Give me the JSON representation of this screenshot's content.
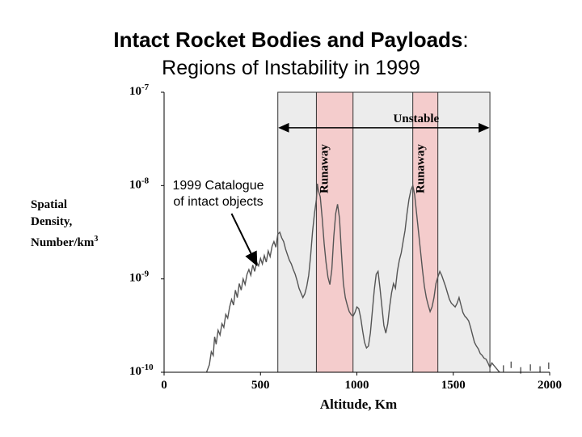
{
  "chart_data": {
    "type": "line",
    "title": "Intact Rocket Bodies and Payloads",
    "title_colon": ":",
    "subtitle": "Regions of Instability in 1999",
    "xlabel": "Altitude, Km",
    "ylabel_lines": [
      "Spatial",
      "Density,",
      "Number/km3"
    ],
    "xlim": [
      0,
      2000
    ],
    "ylim_log10": [
      -10,
      -7
    ],
    "y_scale": "log",
    "x_ticks": [
      0,
      500,
      1000,
      1500,
      2000
    ],
    "y_ticks": [
      {
        "exp": -7,
        "base": "10",
        "sup": "-7"
      },
      {
        "exp": -8,
        "base": "10",
        "sup": "-8"
      },
      {
        "exp": -9,
        "base": "10",
        "sup": "-9"
      },
      {
        "exp": -10,
        "base": "10",
        "sup": "-10"
      }
    ],
    "regions": [
      {
        "name": "unstable-band",
        "x": [
          590,
          1690
        ],
        "color": "#ececec"
      },
      {
        "name": "runaway-band-1",
        "x": [
          790,
          980
        ],
        "color": "#f4cccc",
        "label": "Runaway"
      },
      {
        "name": "runaway-band-2",
        "x": [
          1290,
          1420
        ],
        "color": "#f4cccc",
        "label": "Runaway"
      }
    ],
    "unstable_range": {
      "label": "Unstable",
      "x": [
        590,
        1690
      ],
      "log10y": -7.38
    },
    "annotation": {
      "lines": [
        "1999 Catalogue",
        "of intact objects"
      ],
      "arrow_tail": [
        350,
        -8.3
      ],
      "arrow_head": [
        480,
        -8.85
      ]
    },
    "series": [
      {
        "points": [
          [
            220,
            -10.0
          ],
          [
            235,
            -9.92
          ],
          [
            245,
            -9.78
          ],
          [
            255,
            -9.82
          ],
          [
            262,
            -9.62
          ],
          [
            270,
            -9.7
          ],
          [
            280,
            -9.55
          ],
          [
            290,
            -9.6
          ],
          [
            300,
            -9.48
          ],
          [
            310,
            -9.52
          ],
          [
            320,
            -9.38
          ],
          [
            330,
            -9.42
          ],
          [
            340,
            -9.3
          ],
          [
            350,
            -9.22
          ],
          [
            360,
            -9.28
          ],
          [
            370,
            -9.12
          ],
          [
            380,
            -9.2
          ],
          [
            390,
            -9.05
          ],
          [
            400,
            -9.12
          ],
          [
            410,
            -9.0
          ],
          [
            420,
            -9.06
          ],
          [
            430,
            -8.95
          ],
          [
            440,
            -8.9
          ],
          [
            450,
            -8.96
          ],
          [
            460,
            -8.85
          ],
          [
            470,
            -8.92
          ],
          [
            480,
            -8.82
          ],
          [
            490,
            -8.86
          ],
          [
            500,
            -8.78
          ],
          [
            510,
            -8.84
          ],
          [
            520,
            -8.75
          ],
          [
            530,
            -8.82
          ],
          [
            540,
            -8.7
          ],
          [
            550,
            -8.76
          ],
          [
            560,
            -8.65
          ],
          [
            570,
            -8.6
          ],
          [
            580,
            -8.66
          ],
          [
            590,
            -8.52
          ],
          [
            600,
            -8.5
          ],
          [
            610,
            -8.56
          ],
          [
            620,
            -8.6
          ],
          [
            630,
            -8.68
          ],
          [
            640,
            -8.74
          ],
          [
            650,
            -8.8
          ],
          [
            660,
            -8.84
          ],
          [
            670,
            -8.9
          ],
          [
            680,
            -8.95
          ],
          [
            690,
            -9.02
          ],
          [
            700,
            -9.1
          ],
          [
            710,
            -9.15
          ],
          [
            720,
            -9.2
          ],
          [
            730,
            -9.16
          ],
          [
            740,
            -9.08
          ],
          [
            750,
            -8.96
          ],
          [
            760,
            -8.75
          ],
          [
            770,
            -8.5
          ],
          [
            780,
            -8.3
          ],
          [
            790,
            -8.15
          ],
          [
            795,
            -7.98
          ],
          [
            800,
            -8.05
          ],
          [
            810,
            -8.12
          ],
          [
            820,
            -8.35
          ],
          [
            830,
            -8.62
          ],
          [
            840,
            -8.82
          ],
          [
            850,
            -8.98
          ],
          [
            860,
            -9.06
          ],
          [
            870,
            -8.9
          ],
          [
            880,
            -8.55
          ],
          [
            890,
            -8.3
          ],
          [
            900,
            -8.2
          ],
          [
            910,
            -8.35
          ],
          [
            920,
            -8.72
          ],
          [
            930,
            -9.05
          ],
          [
            940,
            -9.2
          ],
          [
            950,
            -9.28
          ],
          [
            960,
            -9.35
          ],
          [
            970,
            -9.38
          ],
          [
            980,
            -9.4
          ],
          [
            990,
            -9.36
          ],
          [
            1000,
            -9.3
          ],
          [
            1010,
            -9.32
          ],
          [
            1020,
            -9.42
          ],
          [
            1030,
            -9.56
          ],
          [
            1040,
            -9.68
          ],
          [
            1050,
            -9.74
          ],
          [
            1060,
            -9.72
          ],
          [
            1070,
            -9.58
          ],
          [
            1080,
            -9.35
          ],
          [
            1090,
            -9.12
          ],
          [
            1100,
            -8.95
          ],
          [
            1110,
            -8.92
          ],
          [
            1120,
            -9.1
          ],
          [
            1130,
            -9.3
          ],
          [
            1140,
            -9.5
          ],
          [
            1150,
            -9.58
          ],
          [
            1160,
            -9.48
          ],
          [
            1170,
            -9.3
          ],
          [
            1180,
            -9.15
          ],
          [
            1190,
            -9.05
          ],
          [
            1200,
            -9.1
          ],
          [
            1210,
            -8.92
          ],
          [
            1220,
            -8.8
          ],
          [
            1230,
            -8.72
          ],
          [
            1240,
            -8.6
          ],
          [
            1250,
            -8.48
          ],
          [
            1260,
            -8.3
          ],
          [
            1270,
            -8.15
          ],
          [
            1280,
            -8.05
          ],
          [
            1290,
            -8.0
          ],
          [
            1300,
            -8.1
          ],
          [
            1310,
            -8.3
          ],
          [
            1320,
            -8.5
          ],
          [
            1330,
            -8.7
          ],
          [
            1340,
            -8.9
          ],
          [
            1350,
            -9.08
          ],
          [
            1360,
            -9.2
          ],
          [
            1370,
            -9.28
          ],
          [
            1380,
            -9.35
          ],
          [
            1390,
            -9.3
          ],
          [
            1400,
            -9.2
          ],
          [
            1410,
            -9.05
          ],
          [
            1420,
            -8.98
          ],
          [
            1430,
            -8.92
          ],
          [
            1440,
            -8.96
          ],
          [
            1450,
            -9.02
          ],
          [
            1460,
            -9.08
          ],
          [
            1470,
            -9.15
          ],
          [
            1480,
            -9.22
          ],
          [
            1490,
            -9.26
          ],
          [
            1500,
            -9.28
          ],
          [
            1510,
            -9.3
          ],
          [
            1520,
            -9.26
          ],
          [
            1530,
            -9.2
          ],
          [
            1540,
            -9.28
          ],
          [
            1550,
            -9.36
          ],
          [
            1560,
            -9.4
          ],
          [
            1570,
            -9.42
          ],
          [
            1580,
            -9.45
          ],
          [
            1590,
            -9.52
          ],
          [
            1600,
            -9.6
          ],
          [
            1610,
            -9.68
          ],
          [
            1620,
            -9.72
          ],
          [
            1630,
            -9.75
          ],
          [
            1640,
            -9.8
          ],
          [
            1650,
            -9.82
          ],
          [
            1660,
            -9.85
          ],
          [
            1670,
            -9.86
          ],
          [
            1680,
            -9.9
          ],
          [
            1690,
            -9.95
          ],
          [
            1700,
            -9.9
          ],
          [
            1720,
            -9.95
          ],
          [
            1740,
            -10.0
          ]
        ]
      }
    ],
    "scatter_tail": [
      [
        1760,
        -9.96
      ],
      [
        1800,
        -9.92
      ],
      [
        1850,
        -9.98
      ],
      [
        1900,
        -9.95
      ],
      [
        1950,
        -9.97
      ],
      [
        1995,
        -9.93
      ]
    ],
    "colors": {
      "line": "#555555",
      "axis": "#000000",
      "unstable": "#ececec",
      "runaway": "#f4cccc",
      "band_edge": "#333333"
    }
  }
}
